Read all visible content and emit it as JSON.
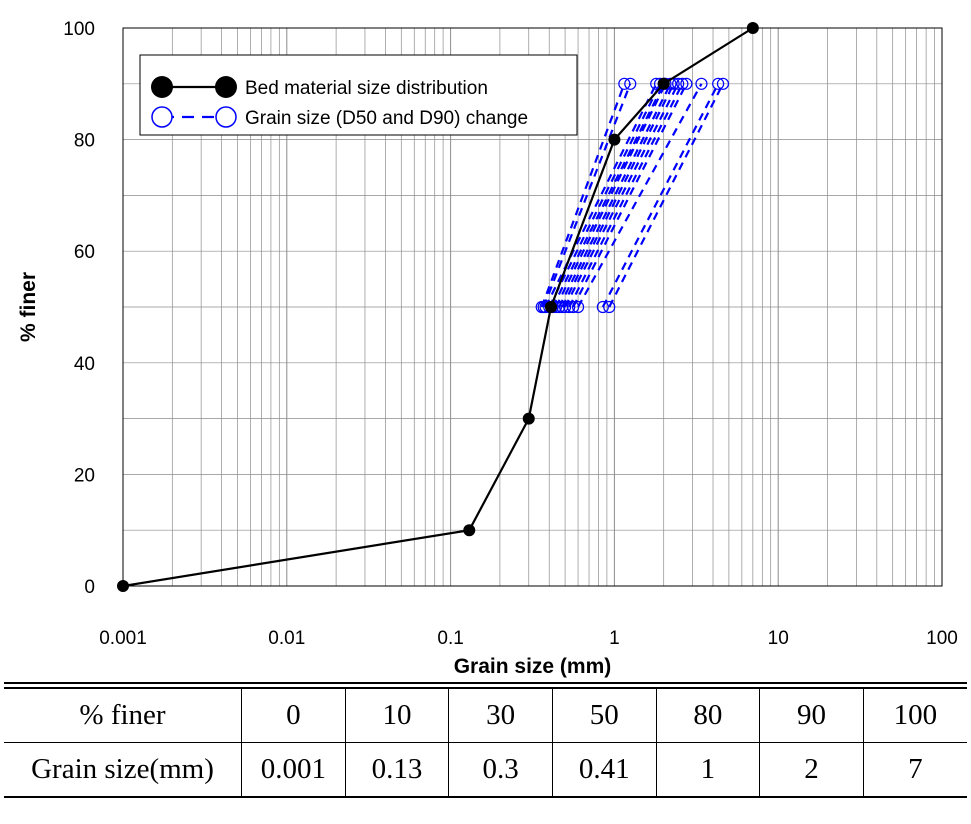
{
  "chart_data": {
    "type": "line",
    "xlabel": "Grain size (mm)",
    "ylabel": "% finer",
    "xscale": "log",
    "xlim": [
      0.001,
      100
    ],
    "ylim": [
      0,
      100
    ],
    "x_ticks": [
      "0.001",
      "0.01",
      "0.1",
      "1",
      "10",
      "100"
    ],
    "y_ticks": [
      "0",
      "20",
      "40",
      "60",
      "80",
      "100"
    ],
    "grid": true,
    "legend_position": "top-left",
    "series": [
      {
        "name": "Bed material size distribution",
        "style": "solid line, filled circle markers",
        "color": "#000000",
        "x": [
          0.001,
          0.13,
          0.3,
          0.41,
          1,
          2,
          7
        ],
        "y": [
          0,
          10,
          30,
          50,
          80,
          90,
          100
        ]
      },
      {
        "name": "Grain size (D50 and D90) change",
        "style": "dashed line, open circle markers",
        "color": "#0000ff",
        "lines": [
          {
            "d50": 0.36,
            "d90": 1.15
          },
          {
            "d50": 0.37,
            "d90": 1.25
          },
          {
            "d50": 0.38,
            "d90": 1.8
          },
          {
            "d50": 0.4,
            "d90": 1.9
          },
          {
            "d50": 0.42,
            "d90": 2.0
          },
          {
            "d50": 0.44,
            "d90": 2.05
          },
          {
            "d50": 0.46,
            "d90": 2.2
          },
          {
            "d50": 0.48,
            "d90": 2.3
          },
          {
            "d50": 0.5,
            "d90": 2.45
          },
          {
            "d50": 0.53,
            "d90": 2.6
          },
          {
            "d50": 0.56,
            "d90": 2.75
          },
          {
            "d50": 0.6,
            "d90": 3.4
          },
          {
            "d50": 0.85,
            "d90": 4.3
          },
          {
            "d50": 0.93,
            "d90": 4.6
          }
        ]
      }
    ]
  },
  "table": {
    "rows": [
      {
        "label": "% finer",
        "cells": [
          "0",
          "10",
          "30",
          "50",
          "80",
          "90",
          "100"
        ]
      },
      {
        "label": "Grain size(mm)",
        "cells": [
          "0.001",
          "0.13",
          "0.3",
          "0.41",
          "1",
          "2",
          "7"
        ]
      }
    ]
  }
}
